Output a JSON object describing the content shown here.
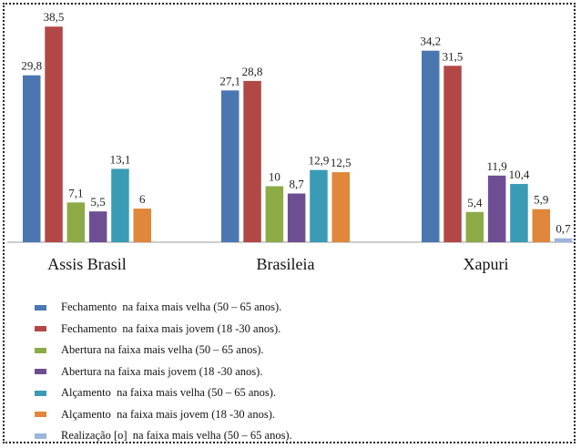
{
  "chart_data": {
    "type": "bar",
    "categories": [
      "Assis Brasil",
      "Brasileia",
      "Xapuri"
    ],
    "series": [
      {
        "name": "Fechamento  na faixa mais velha (50 – 65 anos).",
        "color": "#4A77B0",
        "values": [
          29.8,
          27.1,
          34.2
        ],
        "labels": [
          "29,8",
          "27,1",
          "34,2"
        ]
      },
      {
        "name": "Fechamento  na faixa mais jovem (18 -30 anos).",
        "color": "#B24846",
        "values": [
          38.5,
          28.8,
          31.5
        ],
        "labels": [
          "38,5",
          "28,8",
          "31,5"
        ]
      },
      {
        "name": "Abertura na faixa mais velha (50 – 65 anos).",
        "color": "#8CAB47",
        "values": [
          7.1,
          10,
          5.4
        ],
        "labels": [
          "7,1",
          "10",
          "5,4"
        ]
      },
      {
        "name": "Abertura na faixa mais jovem (18 -30 anos).",
        "color": "#6E4E93",
        "values": [
          5.5,
          8.7,
          11.9
        ],
        "labels": [
          "5,5",
          "8,7",
          "11,9"
        ]
      },
      {
        "name": "Alçamento  na faixa mais velha (50 – 65 anos).",
        "color": "#3A9BB4",
        "values": [
          13.1,
          12.9,
          10.4
        ],
        "labels": [
          "13,1",
          "12,9",
          "10,4"
        ]
      },
      {
        "name": "Alçamento  na faixa mais jovem (18 -30 anos).",
        "color": "#E0873B",
        "values": [
          6,
          12.5,
          5.9
        ],
        "labels": [
          "6",
          "12,5",
          "5,9"
        ]
      },
      {
        "name": "Realização [o]  na faixa mais velha (50 – 65 anos).",
        "color": "#9DB4DB",
        "values": [
          null,
          null,
          0.7
        ],
        "labels": [
          null,
          null,
          "0,7"
        ]
      }
    ],
    "ylim": [
      0,
      40
    ],
    "grid": false,
    "legend_position": "bottom"
  }
}
